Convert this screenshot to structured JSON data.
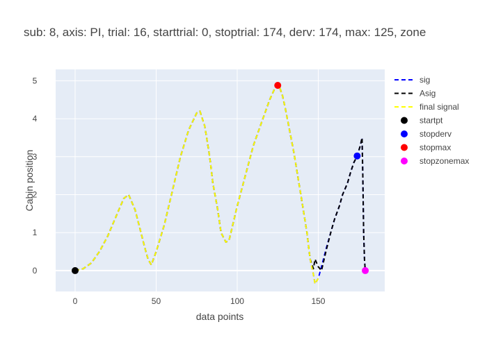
{
  "chart_data": {
    "type": "line",
    "title": "sub: 8, axis: PI, trial: 16, starttrial: 0, stoptrial: 174, derv: 174, max: 125, zone",
    "xlabel": "data points",
    "ylabel": "Cabin position",
    "xlim": [
      -12,
      191
    ],
    "ylim": [
      -0.55,
      5.3
    ],
    "xticks": [
      0,
      50,
      100,
      150
    ],
    "yticks": [
      0,
      1,
      2,
      3,
      4,
      5
    ],
    "grid": true,
    "legend_position": "right",
    "series": [
      {
        "name": "sig",
        "color": "#0000ff",
        "dash": "dashed",
        "x": [
          0,
          5,
          10,
          15,
          20,
          25,
          30,
          33,
          37,
          40,
          43,
          45,
          47,
          50,
          55,
          60,
          65,
          70,
          75,
          77,
          80,
          83,
          85,
          88,
          90,
          93,
          95,
          100,
          105,
          110,
          115,
          120,
          124,
          126,
          128,
          130,
          135,
          140,
          143,
          145,
          147,
          148,
          150,
          152,
          155,
          158,
          160,
          163,
          165,
          168,
          170,
          172,
          174,
          176,
          177,
          177.5,
          178,
          178.5,
          179
        ],
        "y": [
          0,
          0.05,
          0.2,
          0.5,
          0.9,
          1.4,
          1.9,
          2.0,
          1.6,
          1.1,
          0.6,
          0.3,
          0.15,
          0.5,
          1.2,
          2.1,
          3.0,
          3.7,
          4.15,
          4.2,
          3.8,
          3.0,
          2.3,
          1.6,
          1.0,
          0.75,
          0.8,
          1.7,
          2.5,
          3.3,
          3.9,
          4.5,
          4.88,
          4.85,
          4.6,
          4.2,
          3.1,
          1.8,
          1.0,
          0.3,
          -0.1,
          -0.35,
          -0.2,
          0.1,
          0.6,
          1.05,
          1.35,
          1.7,
          2.0,
          2.3,
          2.6,
          2.85,
          3.02,
          3.3,
          3.5,
          2.5,
          1.0,
          0.3,
          0.0
        ]
      },
      {
        "name": "Asig",
        "color": "#000000",
        "dash": "dashed",
        "x": [
          0,
          5,
          10,
          15,
          20,
          25,
          30,
          33,
          37,
          40,
          43,
          45,
          47,
          50,
          55,
          60,
          65,
          70,
          75,
          77,
          80,
          83,
          85,
          88,
          90,
          93,
          95,
          100,
          105,
          110,
          115,
          120,
          124,
          126,
          128,
          130,
          135,
          140,
          143,
          145,
          147,
          148,
          150,
          152,
          155,
          158,
          160,
          163,
          165,
          168,
          170,
          172,
          174,
          176,
          177,
          177.5,
          178,
          178.5,
          179
        ],
        "y": [
          0,
          0.05,
          0.2,
          0.5,
          0.9,
          1.4,
          1.9,
          2.0,
          1.6,
          1.1,
          0.6,
          0.3,
          0.15,
          0.5,
          1.2,
          2.1,
          3.0,
          3.7,
          4.15,
          4.2,
          3.8,
          3.0,
          2.3,
          1.6,
          1.0,
          0.75,
          0.8,
          1.7,
          2.5,
          3.3,
          3.9,
          4.5,
          4.88,
          4.85,
          4.6,
          4.2,
          3.1,
          1.8,
          1.0,
          0.3,
          0.05,
          0.3,
          0.1,
          0.0,
          0.55,
          1.05,
          1.35,
          1.7,
          2.0,
          2.3,
          2.6,
          2.85,
          3.02,
          3.3,
          3.5,
          2.5,
          1.0,
          0.3,
          0.0
        ]
      },
      {
        "name": "final signal",
        "color": "#ffff00",
        "dash": "dashed",
        "x": [
          0,
          5,
          10,
          15,
          20,
          25,
          30,
          33,
          37,
          40,
          43,
          45,
          47,
          50,
          55,
          60,
          65,
          70,
          75,
          77,
          80,
          83,
          85,
          88,
          90,
          93,
          95,
          100,
          105,
          110,
          115,
          120,
          124,
          126,
          128,
          130,
          135,
          140,
          143,
          145,
          147,
          148,
          150
        ],
        "y": [
          0,
          0.05,
          0.2,
          0.5,
          0.9,
          1.4,
          1.9,
          2.0,
          1.6,
          1.1,
          0.6,
          0.3,
          0.15,
          0.5,
          1.2,
          2.1,
          3.0,
          3.7,
          4.15,
          4.2,
          3.8,
          3.0,
          2.3,
          1.6,
          1.0,
          0.75,
          0.8,
          1.7,
          2.5,
          3.3,
          3.9,
          4.5,
          4.88,
          4.85,
          4.6,
          4.2,
          3.1,
          1.8,
          1.0,
          0.3,
          -0.1,
          -0.35,
          -0.2
        ]
      }
    ],
    "markers": [
      {
        "name": "startpt",
        "color": "#000000",
        "x": 0,
        "y": 0
      },
      {
        "name": "stopderv",
        "color": "#0000ff",
        "x": 174,
        "y": 3.02
      },
      {
        "name": "stopmax",
        "color": "#ff0000",
        "x": 125,
        "y": 4.88
      },
      {
        "name": "stopzonemax",
        "color": "#ff00ff",
        "x": 179,
        "y": 0.0
      }
    ]
  },
  "colors": {
    "plot_bg": "#e5ecf6",
    "grid": "#ffffff",
    "text": "#444444"
  }
}
